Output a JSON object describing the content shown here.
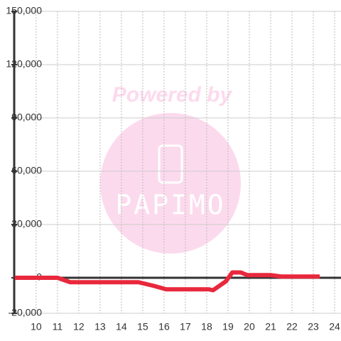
{
  "chart_data": {
    "type": "line",
    "watermark": {
      "text": "Powered by",
      "logo": "PAPIMO"
    },
    "x": [
      9,
      11,
      11.6,
      14.8,
      15.5,
      16.1,
      18.1,
      18.3,
      18.9,
      19.2,
      19.6,
      19.9,
      21,
      21.5,
      23.3
    ],
    "series": [
      {
        "color": "#e8283c",
        "values": [
          0,
          0,
          -2500,
          -2500,
          -4500,
          -6500,
          -6500,
          -7000,
          -2000,
          3000,
          3000,
          1500,
          1500,
          700,
          700
        ]
      }
    ],
    "xlim": [
      8.97,
      24.3
    ],
    "xticks": [
      10,
      11,
      12,
      13,
      14,
      15,
      16,
      17,
      18,
      19,
      20,
      21,
      22,
      23,
      24
    ],
    "ylim": [
      -20000,
      150000
    ],
    "yticks": [
      {
        "value": -20000,
        "label": "-20,000"
      },
      0,
      {
        "value": 30000,
        "label": "30,000"
      },
      {
        "value": 60000,
        "label": "60,000"
      },
      {
        "value": 90000,
        "label": "90,000"
      },
      {
        "value": 120000,
        "label": "120,000"
      },
      {
        "value": 150000,
        "label": "150,000"
      }
    ],
    "grid": true
  }
}
